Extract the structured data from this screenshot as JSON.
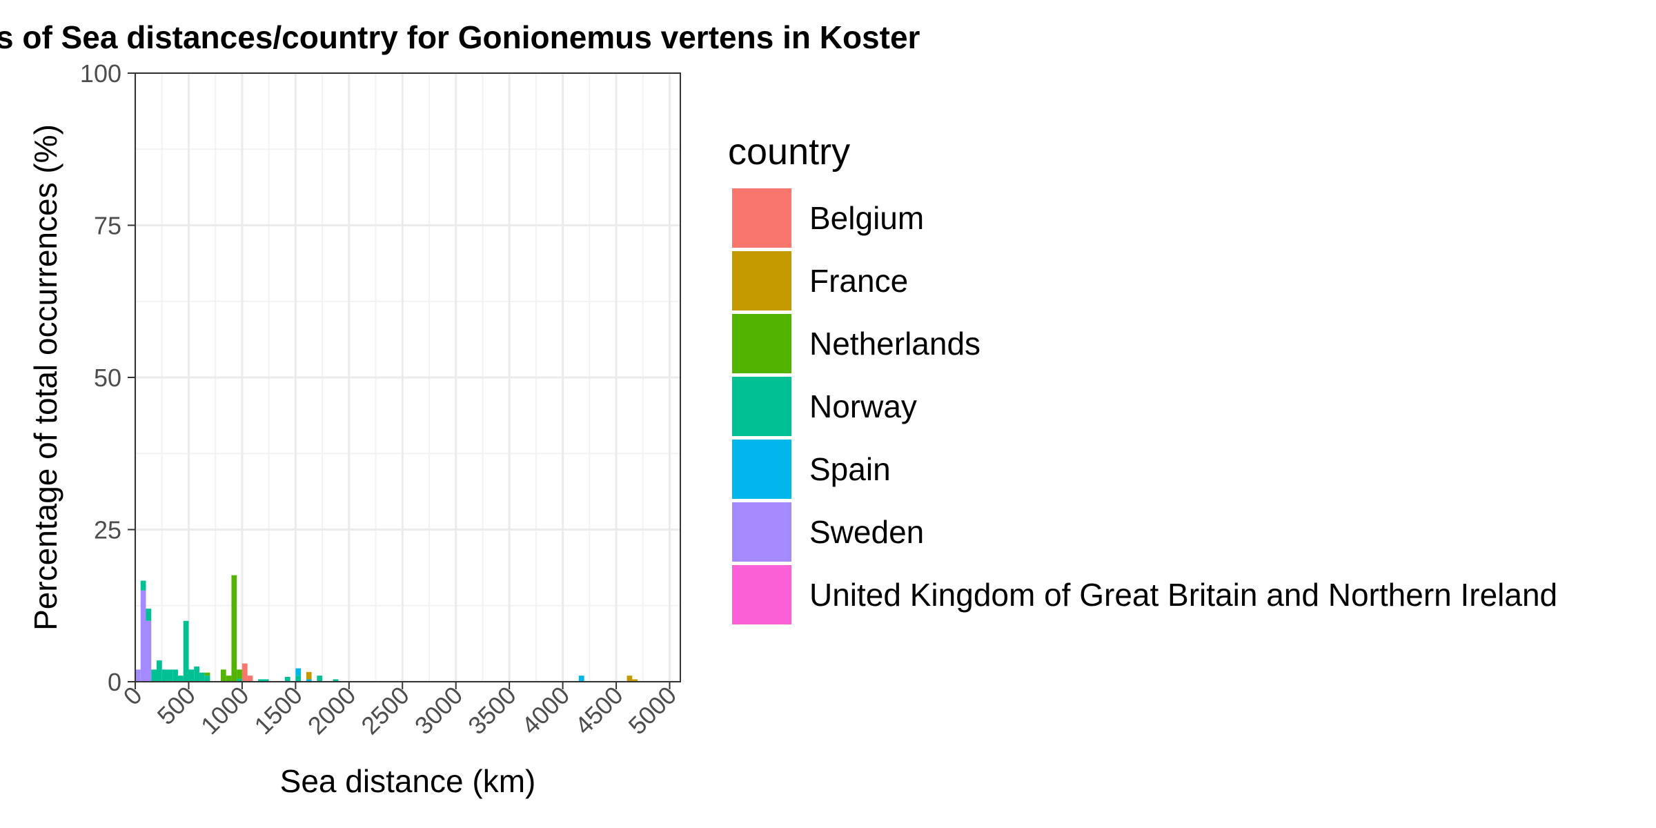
{
  "chart_data": {
    "type": "bar",
    "stacked": true,
    "title": "s of Sea distances/country for Gonionemus vertens in Koster",
    "xlabel": "Sea distance (km)",
    "ylabel": "Percentage of total occurrences (%)",
    "xlim": [
      0,
      5100
    ],
    "ylim": [
      0,
      100
    ],
    "x_ticks": [
      0,
      500,
      1000,
      1500,
      2000,
      2500,
      3000,
      3500,
      4000,
      4500,
      5000
    ],
    "y_ticks": [
      0,
      25,
      50,
      75,
      100
    ],
    "bin_width": 50,
    "grid": true,
    "legend": {
      "title": "country",
      "position": "right",
      "entries": [
        {
          "name": "Belgium",
          "color": "#F8766D"
        },
        {
          "name": "France",
          "color": "#C49A00"
        },
        {
          "name": "Netherlands",
          "color": "#53B400"
        },
        {
          "name": "Norway",
          "color": "#00C094"
        },
        {
          "name": "Spain",
          "color": "#00B6EB"
        },
        {
          "name": "Sweden",
          "color": "#A58AFF"
        },
        {
          "name": "United Kingdom of Great Britain and Northern Ireland",
          "color": "#FB61D7"
        }
      ]
    },
    "series": [
      {
        "name": "Sweden",
        "points": [
          [
            25,
            2.0
          ],
          [
            75,
            15.0
          ],
          [
            125,
            10.0
          ]
        ]
      },
      {
        "name": "Norway",
        "points": [
          [
            75,
            1.6
          ],
          [
            125,
            2.0
          ],
          [
            175,
            2.0
          ],
          [
            225,
            3.5
          ],
          [
            275,
            2.0
          ],
          [
            325,
            2.0
          ],
          [
            375,
            2.0
          ],
          [
            425,
            1.0
          ],
          [
            475,
            10.0
          ],
          [
            525,
            2.0
          ],
          [
            575,
            2.5
          ],
          [
            625,
            1.5
          ],
          [
            675,
            1.0
          ],
          [
            975,
            0.5
          ],
          [
            1175,
            0.4
          ],
          [
            1225,
            0.4
          ],
          [
            1425,
            0.8
          ],
          [
            1525,
            1.0
          ],
          [
            1725,
            1.0
          ],
          [
            1875,
            0.4
          ]
        ]
      },
      {
        "name": "Netherlands",
        "points": [
          [
            675,
            0.5
          ],
          [
            825,
            2.0
          ],
          [
            875,
            1.0
          ],
          [
            925,
            17.5
          ],
          [
            975,
            1.5
          ]
        ]
      },
      {
        "name": "Spain",
        "points": [
          [
            1525,
            1.2
          ],
          [
            1625,
            0.4
          ],
          [
            4175,
            1.0
          ]
        ]
      },
      {
        "name": "Belgium",
        "points": [
          [
            1025,
            3.0
          ],
          [
            1075,
            1.0
          ]
        ]
      },
      {
        "name": "France",
        "points": [
          [
            1625,
            1.2
          ],
          [
            4625,
            1.0
          ],
          [
            4675,
            0.4
          ]
        ]
      }
    ]
  }
}
